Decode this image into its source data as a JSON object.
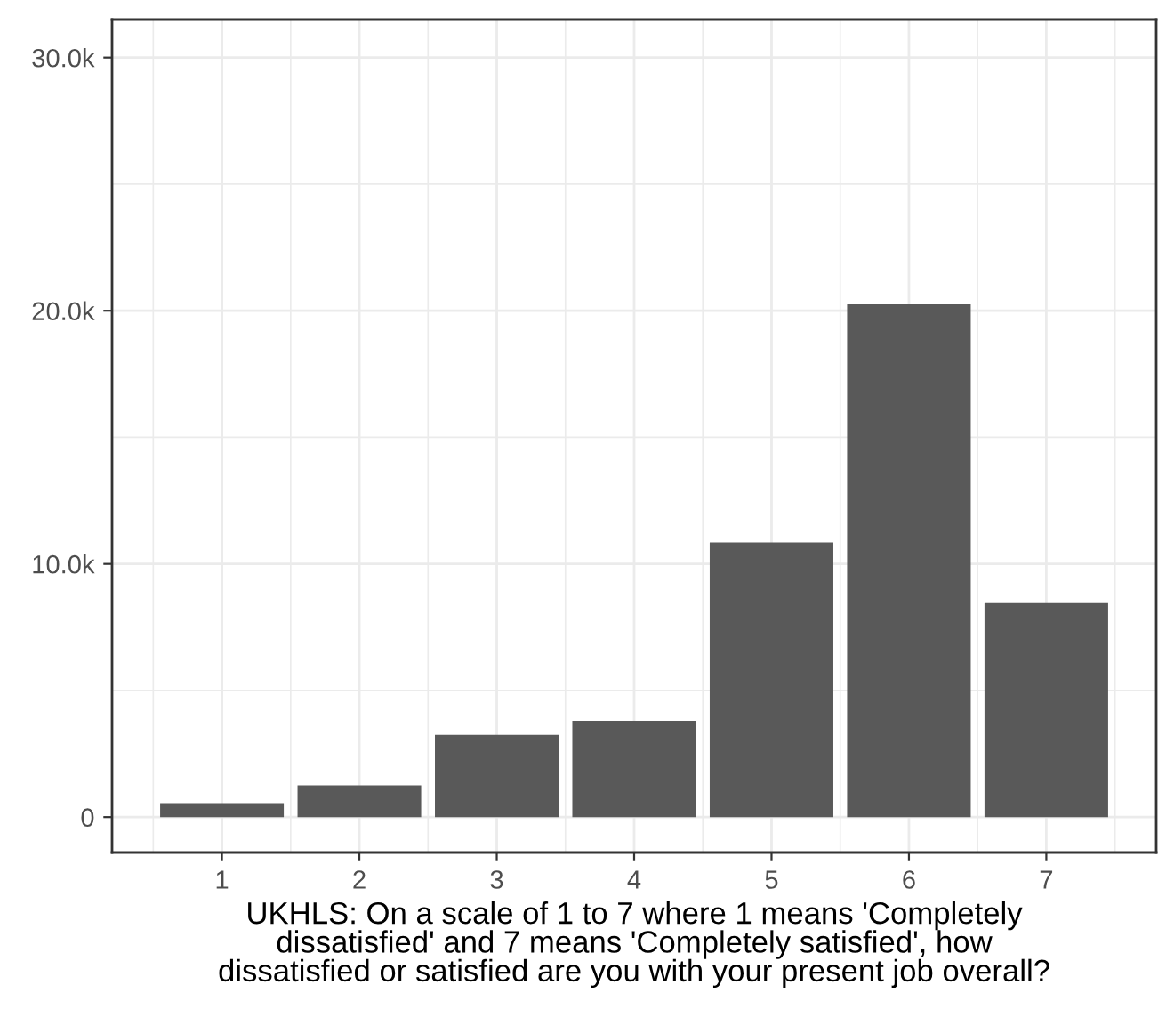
{
  "chart_data": {
    "type": "bar",
    "xlabel": "UKHLS: On a scale of 1 to 7 where 1 means 'Completely\ndissatisfied' and 7 means 'Completely satisfied', how\ndissatisfied or satisfied are you with your present job overall?",
    "categories": [
      "1",
      "2",
      "3",
      "4",
      "5",
      "6",
      "7"
    ],
    "values": [
      550,
      1250,
      3250,
      3800,
      10850,
      20250,
      8450
    ],
    "color": "#595959",
    "ylim": [
      -1400,
      31500
    ],
    "yticks": [
      0,
      {
        "value": 10000,
        "label": "10.0k"
      },
      {
        "value": 20000,
        "label": "20.0k"
      },
      {
        "value": 30000,
        "label": "30.0k"
      }
    ],
    "grid": true
  }
}
